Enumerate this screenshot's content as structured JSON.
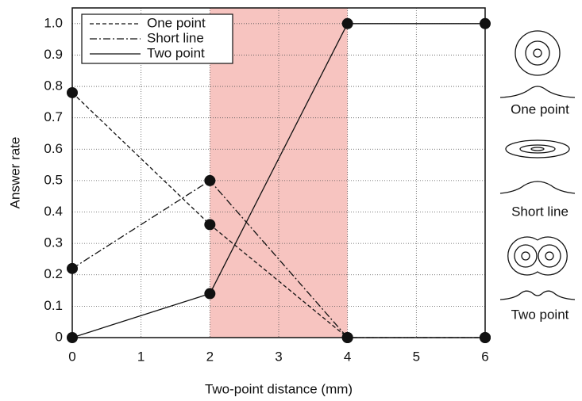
{
  "chart_data": {
    "type": "line",
    "xlabel": "Two-point distance (mm)",
    "ylabel": "Answer rate",
    "x": [
      0,
      2,
      4,
      6
    ],
    "series": [
      {
        "name": "One point",
        "color": "#111111",
        "linestyle": "dashed",
        "values": [
          0.78,
          0.36,
          0,
          0
        ]
      },
      {
        "name": "Short line",
        "color": "#111111",
        "linestyle": "dashdot",
        "values": [
          0.22,
          0.5,
          0,
          0
        ]
      },
      {
        "name": "Two point",
        "color": "#111111",
        "linestyle": "solid",
        "values": [
          0,
          0.14,
          1,
          1
        ]
      }
    ],
    "xlim": [
      0,
      6
    ],
    "xticks": [
      0,
      1,
      2,
      3,
      4,
      5,
      6
    ],
    "ylim": [
      0,
      1.05
    ],
    "yticks": [
      0,
      0.1,
      0.2,
      0.3,
      0.4,
      0.5,
      0.6,
      0.7,
      0.8,
      0.9,
      {
        "value": 1,
        "label": "1.0"
      }
    ],
    "grid": true,
    "legend": "upper left",
    "shaded_xspan": [
      2,
      4
    ],
    "shaded_color": "#f7c4c0",
    "side_labels": [
      "One point",
      "Short line",
      "Two point"
    ]
  }
}
